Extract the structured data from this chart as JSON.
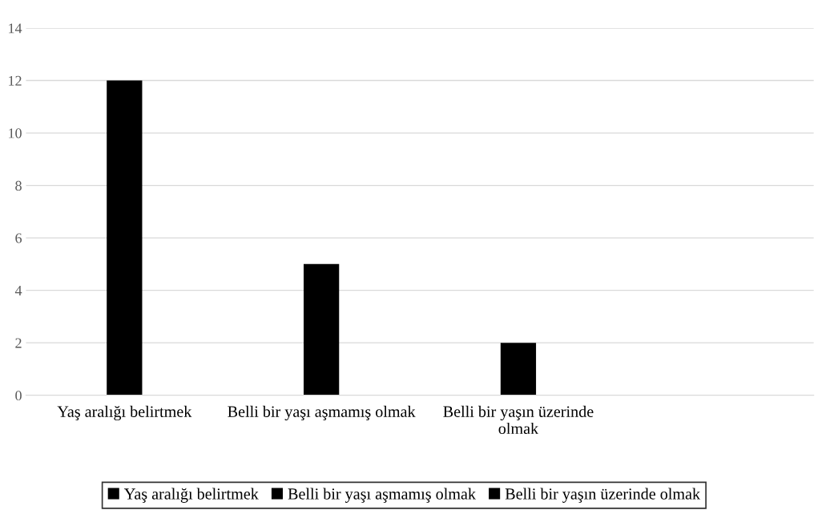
{
  "chart_data": {
    "type": "bar",
    "categories": [
      "Yaş aralığı belirtmek",
      "Belli bir yaşı aşmamış olmak",
      "Belli bir yaşın üzerinde olmak",
      null
    ],
    "series": [
      {
        "name": "Yaş aralığı belirtmek",
        "color": "#000000",
        "values": [
          12,
          null,
          null,
          null
        ]
      },
      {
        "name": "Belli bir yaşı aşmamış olmak",
        "color": "#000000",
        "values": [
          null,
          5,
          null,
          null
        ]
      },
      {
        "name": "Belli bir yaşın üzerinde olmak",
        "color": "#000000",
        "values": [
          null,
          null,
          2,
          null
        ]
      }
    ],
    "ylim": [
      0,
      14
    ],
    "yticks": [
      0,
      2,
      4,
      6,
      8,
      10,
      12,
      14
    ],
    "grid": "y",
    "legend": "bottom"
  }
}
